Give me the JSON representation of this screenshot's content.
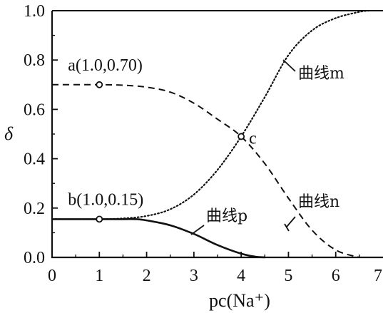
{
  "chart_data": {
    "type": "line",
    "xlabel": "pc(Na⁺)",
    "ylabel": "δ",
    "xlim": [
      0,
      7
    ],
    "ylim": [
      0.0,
      1.0
    ],
    "x_ticks": [
      "0",
      "1",
      "2",
      "3",
      "4",
      "5",
      "6",
      "7"
    ],
    "y_ticks": [
      "0.0",
      "0.2",
      "0.4",
      "0.6",
      "0.8",
      "1.0"
    ],
    "grid": false,
    "series": [
      {
        "name": "曲线m",
        "style": "dotted",
        "x": [
          0,
          1.0,
          1.5,
          2.0,
          2.5,
          3.0,
          3.5,
          4.0,
          4.5,
          5.0,
          5.5,
          6.0,
          6.5,
          6.7
        ],
        "y": [
          0.155,
          0.155,
          0.158,
          0.168,
          0.195,
          0.255,
          0.355,
          0.49,
          0.65,
          0.82,
          0.92,
          0.97,
          0.995,
          1.0
        ]
      },
      {
        "name": "曲线n",
        "style": "dashed",
        "x": [
          0,
          1.0,
          1.5,
          2.0,
          2.5,
          3.0,
          3.5,
          4.0,
          4.5,
          5.0,
          5.5,
          6.0,
          6.5
        ],
        "y": [
          0.7,
          0.7,
          0.698,
          0.69,
          0.67,
          0.625,
          0.56,
          0.49,
          0.38,
          0.24,
          0.11,
          0.03,
          0.0
        ]
      },
      {
        "name": "曲线p",
        "style": "solid",
        "x": [
          0,
          1.0,
          1.5,
          1.8,
          2.0,
          2.5,
          3.0,
          3.5,
          4.0,
          4.3,
          4.5
        ],
        "y": [
          0.155,
          0.155,
          0.155,
          0.155,
          0.15,
          0.13,
          0.095,
          0.05,
          0.015,
          0.003,
          0.0
        ]
      }
    ],
    "points": [
      {
        "label": "a(1.0,0.70)",
        "x": 1.0,
        "y": 0.7
      },
      {
        "label": "b(1.0,0.15)",
        "x": 1.0,
        "y": 0.155
      },
      {
        "label": "c",
        "x": 4.0,
        "y": 0.49
      }
    ]
  }
}
